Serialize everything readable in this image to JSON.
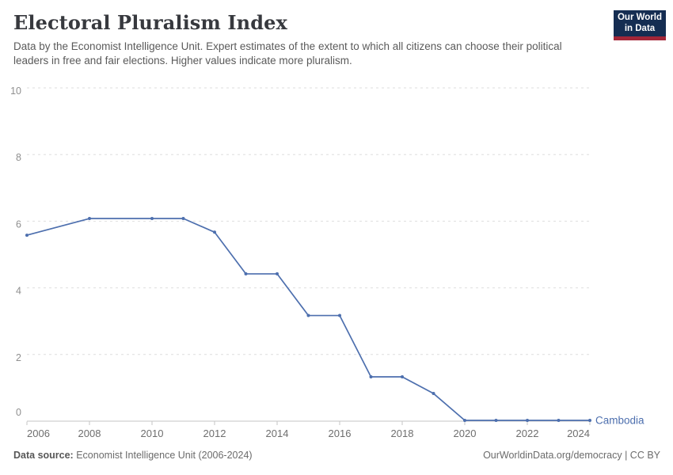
{
  "header": {
    "title": "Electoral Pluralism Index",
    "subtitle": "Data by the Economist Intelligence Unit. Expert estimates of the extent to which all citizens can choose their political leaders in free and fair elections. Higher values indicate more pluralism."
  },
  "logo": {
    "line1": "Our World",
    "line2": "in Data",
    "bg_color": "#152d52",
    "bar_color": "#a32638"
  },
  "chart_data": {
    "type": "line",
    "title": "Electoral Pluralism Index",
    "series": [
      {
        "name": "Cambodia",
        "color": "#4d6fae",
        "x": [
          2006,
          2008,
          2010,
          2011,
          2012,
          2013,
          2014,
          2015,
          2016,
          2017,
          2018,
          2019,
          2020,
          2021,
          2022,
          2023,
          2024
        ],
        "values": [
          5.58,
          6.08,
          6.08,
          6.08,
          5.67,
          4.42,
          4.42,
          3.17,
          3.17,
          1.33,
          1.33,
          0.83,
          0,
          0,
          0,
          0,
          0
        ]
      }
    ],
    "xlabel": "",
    "ylabel": "",
    "xlim": [
      2006,
      2024
    ],
    "ylim": [
      0,
      10
    ],
    "yticks": [
      0,
      2,
      4,
      6,
      8,
      10
    ],
    "xticks": [
      2006,
      2008,
      2010,
      2012,
      2014,
      2016,
      2018,
      2020,
      2022,
      2024
    ],
    "grid": "horizontal-dashed",
    "legend_position": "end-of-line-label",
    "colors": {
      "gridline": "#dedede",
      "axis": "#c4c4c4",
      "ytick_label": "#8f8f8f",
      "xtick_label": "#6e6e6e"
    }
  },
  "footer": {
    "source_label": "Data source:",
    "source_value": "Economist Intelligence Unit (2006-2024)",
    "credit": "OurWorldinData.org/democracy | CC BY"
  }
}
